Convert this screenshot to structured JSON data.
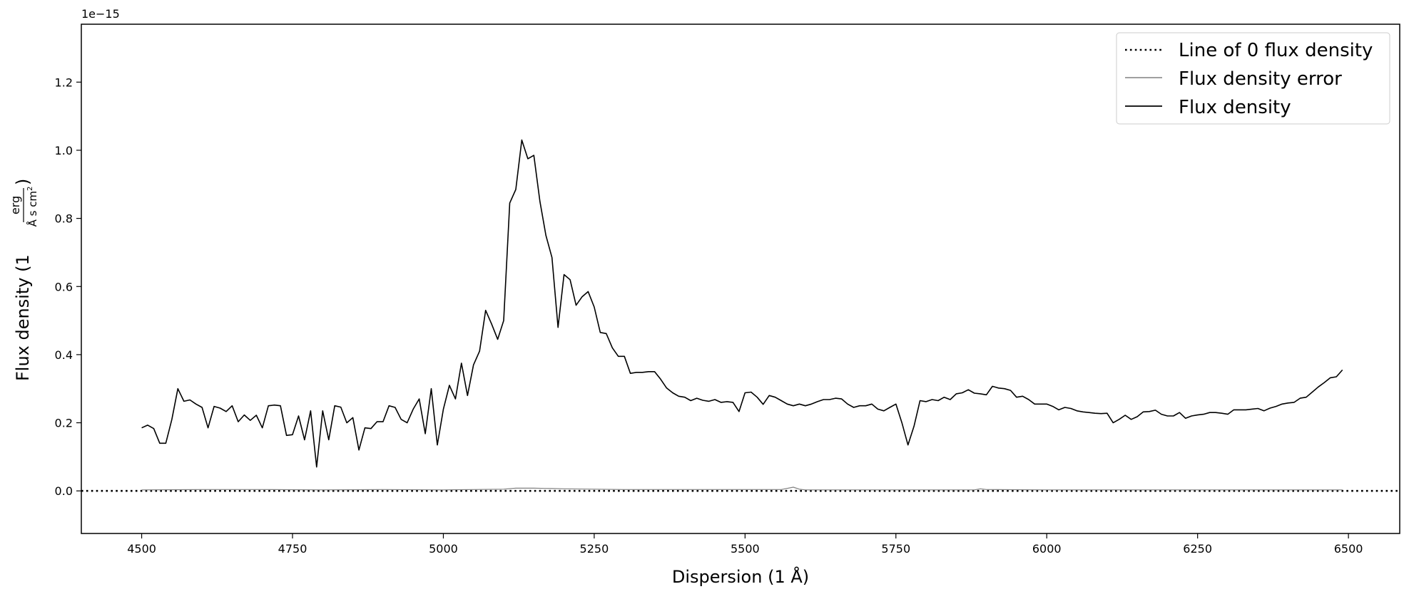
{
  "chart_data": {
    "type": "line",
    "xlabel": "Dispersion (1 Å)",
    "ylabel": "Flux density (1 erg / (Å s cm²))",
    "ylabel_prefix": "Flux density (1",
    "ylabel_frac_num": "erg",
    "ylabel_frac_den": "Å s cm",
    "ylabel_frac_den_sup": "2",
    "ylabel_suffix": ")",
    "y_offset_text": "1e−15",
    "xlim": [
      4400,
      6585
    ],
    "ylim": [
      -0.125,
      1.37
    ],
    "y_scale_factor": 1e-15,
    "xticks": [
      4500,
      4750,
      5000,
      5250,
      5500,
      5750,
      6000,
      6250,
      6500
    ],
    "xtick_labels": [
      "4500",
      "4750",
      "5000",
      "5250",
      "5500",
      "5750",
      "6000",
      "6250",
      "6500"
    ],
    "yticks": [
      0.0,
      0.2,
      0.4,
      0.6,
      0.8,
      1.0,
      1.2
    ],
    "ytick_labels": [
      "0.0",
      "0.2",
      "0.4",
      "0.6",
      "0.8",
      "1.0",
      "1.2"
    ],
    "grid": false,
    "legend_position": "top-right",
    "legend": [
      "Line of 0 flux density",
      "Flux density error",
      "Flux density"
    ],
    "series": [
      {
        "name": "Line of 0 flux density",
        "style": "dotted",
        "color": "#000000",
        "x": [
          4400,
          6585
        ],
        "y": [
          0,
          0
        ]
      },
      {
        "name": "Flux density error",
        "style": "solid",
        "color": "#808080",
        "x": [
          4500,
          4600,
          4700,
          4800,
          4900,
          5000,
          5050,
          5100,
          5120,
          5150,
          5180,
          5200,
          5250,
          5300,
          5400,
          5500,
          5560,
          5580,
          5590,
          5600,
          5700,
          5800,
          5880,
          5890,
          5900,
          6000,
          6100,
          6200,
          6300,
          6400,
          6490
        ],
        "y": [
          0.003,
          0.004,
          0.004,
          0.003,
          0.004,
          0.003,
          0.004,
          0.005,
          0.008,
          0.008,
          0.007,
          0.006,
          0.005,
          0.004,
          0.004,
          0.004,
          0.004,
          0.011,
          0.005,
          0.003,
          0.003,
          0.003,
          0.003,
          0.006,
          0.004,
          0.003,
          0.003,
          0.003,
          0.003,
          0.003,
          0.003
        ]
      },
      {
        "name": "Flux density",
        "style": "solid",
        "color": "#000000",
        "x": [
          4500,
          4510,
          4520,
          4530,
          4540,
          4550,
          4560,
          4570,
          4580,
          4590,
          4600,
          4610,
          4620,
          4630,
          4640,
          4650,
          4660,
          4670,
          4680,
          4690,
          4700,
          4710,
          4720,
          4730,
          4740,
          4750,
          4760,
          4770,
          4780,
          4790,
          4800,
          4810,
          4820,
          4830,
          4840,
          4850,
          4860,
          4870,
          4880,
          4890,
          4900,
          4910,
          4920,
          4930,
          4940,
          4950,
          4960,
          4970,
          4980,
          4990,
          5000,
          5010,
          5020,
          5030,
          5040,
          5050,
          5060,
          5070,
          5080,
          5090,
          5100,
          5110,
          5120,
          5130,
          5140,
          5150,
          5160,
          5170,
          5180,
          5190,
          5200,
          5210,
          5220,
          5230,
          5240,
          5250,
          5260,
          5270,
          5280,
          5290,
          5300,
          5310,
          5320,
          5330,
          5340,
          5350,
          5360,
          5370,
          5380,
          5390,
          5400,
          5410,
          5420,
          5430,
          5440,
          5450,
          5460,
          5470,
          5480,
          5490,
          5500,
          5510,
          5520,
          5530,
          5540,
          5550,
          5560,
          5570,
          5580,
          5590,
          5600,
          5610,
          5620,
          5630,
          5640,
          5650,
          5660,
          5670,
          5680,
          5690,
          5700,
          5710,
          5720,
          5730,
          5740,
          5750,
          5760,
          5770,
          5780,
          5790,
          5800,
          5810,
          5820,
          5830,
          5840,
          5850,
          5860,
          5870,
          5880,
          5890,
          5900,
          5910,
          5920,
          5930,
          5940,
          5950,
          5960,
          5970,
          5980,
          5990,
          6000,
          6010,
          6020,
          6030,
          6040,
          6050,
          6060,
          6070,
          6080,
          6090,
          6100,
          6110,
          6120,
          6130,
          6140,
          6150,
          6160,
          6170,
          6180,
          6190,
          6200,
          6210,
          6220,
          6230,
          6240,
          6250,
          6260,
          6270,
          6280,
          6290,
          6300,
          6310,
          6320,
          6330,
          6340,
          6350,
          6360,
          6370,
          6380,
          6390,
          6400,
          6410,
          6420,
          6430,
          6440,
          6450,
          6460,
          6470,
          6480,
          6490
        ],
        "y": [
          0.185,
          0.193,
          0.183,
          0.14,
          0.14,
          0.21,
          0.3,
          0.263,
          0.267,
          0.255,
          0.245,
          0.185,
          0.248,
          0.243,
          0.233,
          0.25,
          0.203,
          0.223,
          0.207,
          0.222,
          0.185,
          0.25,
          0.252,
          0.25,
          0.163,
          0.165,
          0.22,
          0.15,
          0.235,
          0.07,
          0.235,
          0.15,
          0.25,
          0.246,
          0.2,
          0.215,
          0.12,
          0.185,
          0.183,
          0.203,
          0.203,
          0.25,
          0.245,
          0.21,
          0.2,
          0.24,
          0.27,
          0.168,
          0.3,
          0.135,
          0.24,
          0.31,
          0.27,
          0.375,
          0.28,
          0.37,
          0.41,
          0.53,
          0.49,
          0.445,
          0.5,
          0.845,
          0.885,
          1.03,
          0.975,
          0.985,
          0.85,
          0.75,
          0.685,
          0.48,
          0.635,
          0.62,
          0.545,
          0.57,
          0.585,
          0.54,
          0.465,
          0.462,
          0.42,
          0.395,
          0.395,
          0.345,
          0.348,
          0.348,
          0.35,
          0.35,
          0.328,
          0.302,
          0.288,
          0.278,
          0.275,
          0.265,
          0.272,
          0.266,
          0.263,
          0.268,
          0.26,
          0.262,
          0.26,
          0.233,
          0.288,
          0.29,
          0.275,
          0.254,
          0.28,
          0.275,
          0.265,
          0.255,
          0.25,
          0.255,
          0.25,
          0.255,
          0.262,
          0.268,
          0.268,
          0.272,
          0.27,
          0.255,
          0.245,
          0.25,
          0.25,
          0.255,
          0.24,
          0.235,
          0.245,
          0.255,
          0.2,
          0.135,
          0.19,
          0.265,
          0.262,
          0.268,
          0.265,
          0.275,
          0.268,
          0.285,
          0.288,
          0.297,
          0.287,
          0.285,
          0.282,
          0.307,
          0.302,
          0.3,
          0.295,
          0.275,
          0.278,
          0.268,
          0.255,
          0.255,
          0.255,
          0.248,
          0.238,
          0.245,
          0.242,
          0.235,
          0.232,
          0.23,
          0.228,
          0.227,
          0.228,
          0.2,
          0.21,
          0.222,
          0.21,
          0.218,
          0.232,
          0.233,
          0.237,
          0.225,
          0.22,
          0.22,
          0.23,
          0.213,
          0.22,
          0.223,
          0.225,
          0.23,
          0.23,
          0.228,
          0.225,
          0.238,
          0.238,
          0.238,
          0.24,
          0.242,
          0.235,
          0.243,
          0.248,
          0.255,
          0.258,
          0.26,
          0.272,
          0.275,
          0.29,
          0.305,
          0.318,
          0.332,
          0.335,
          0.355
        ]
      }
    ]
  }
}
